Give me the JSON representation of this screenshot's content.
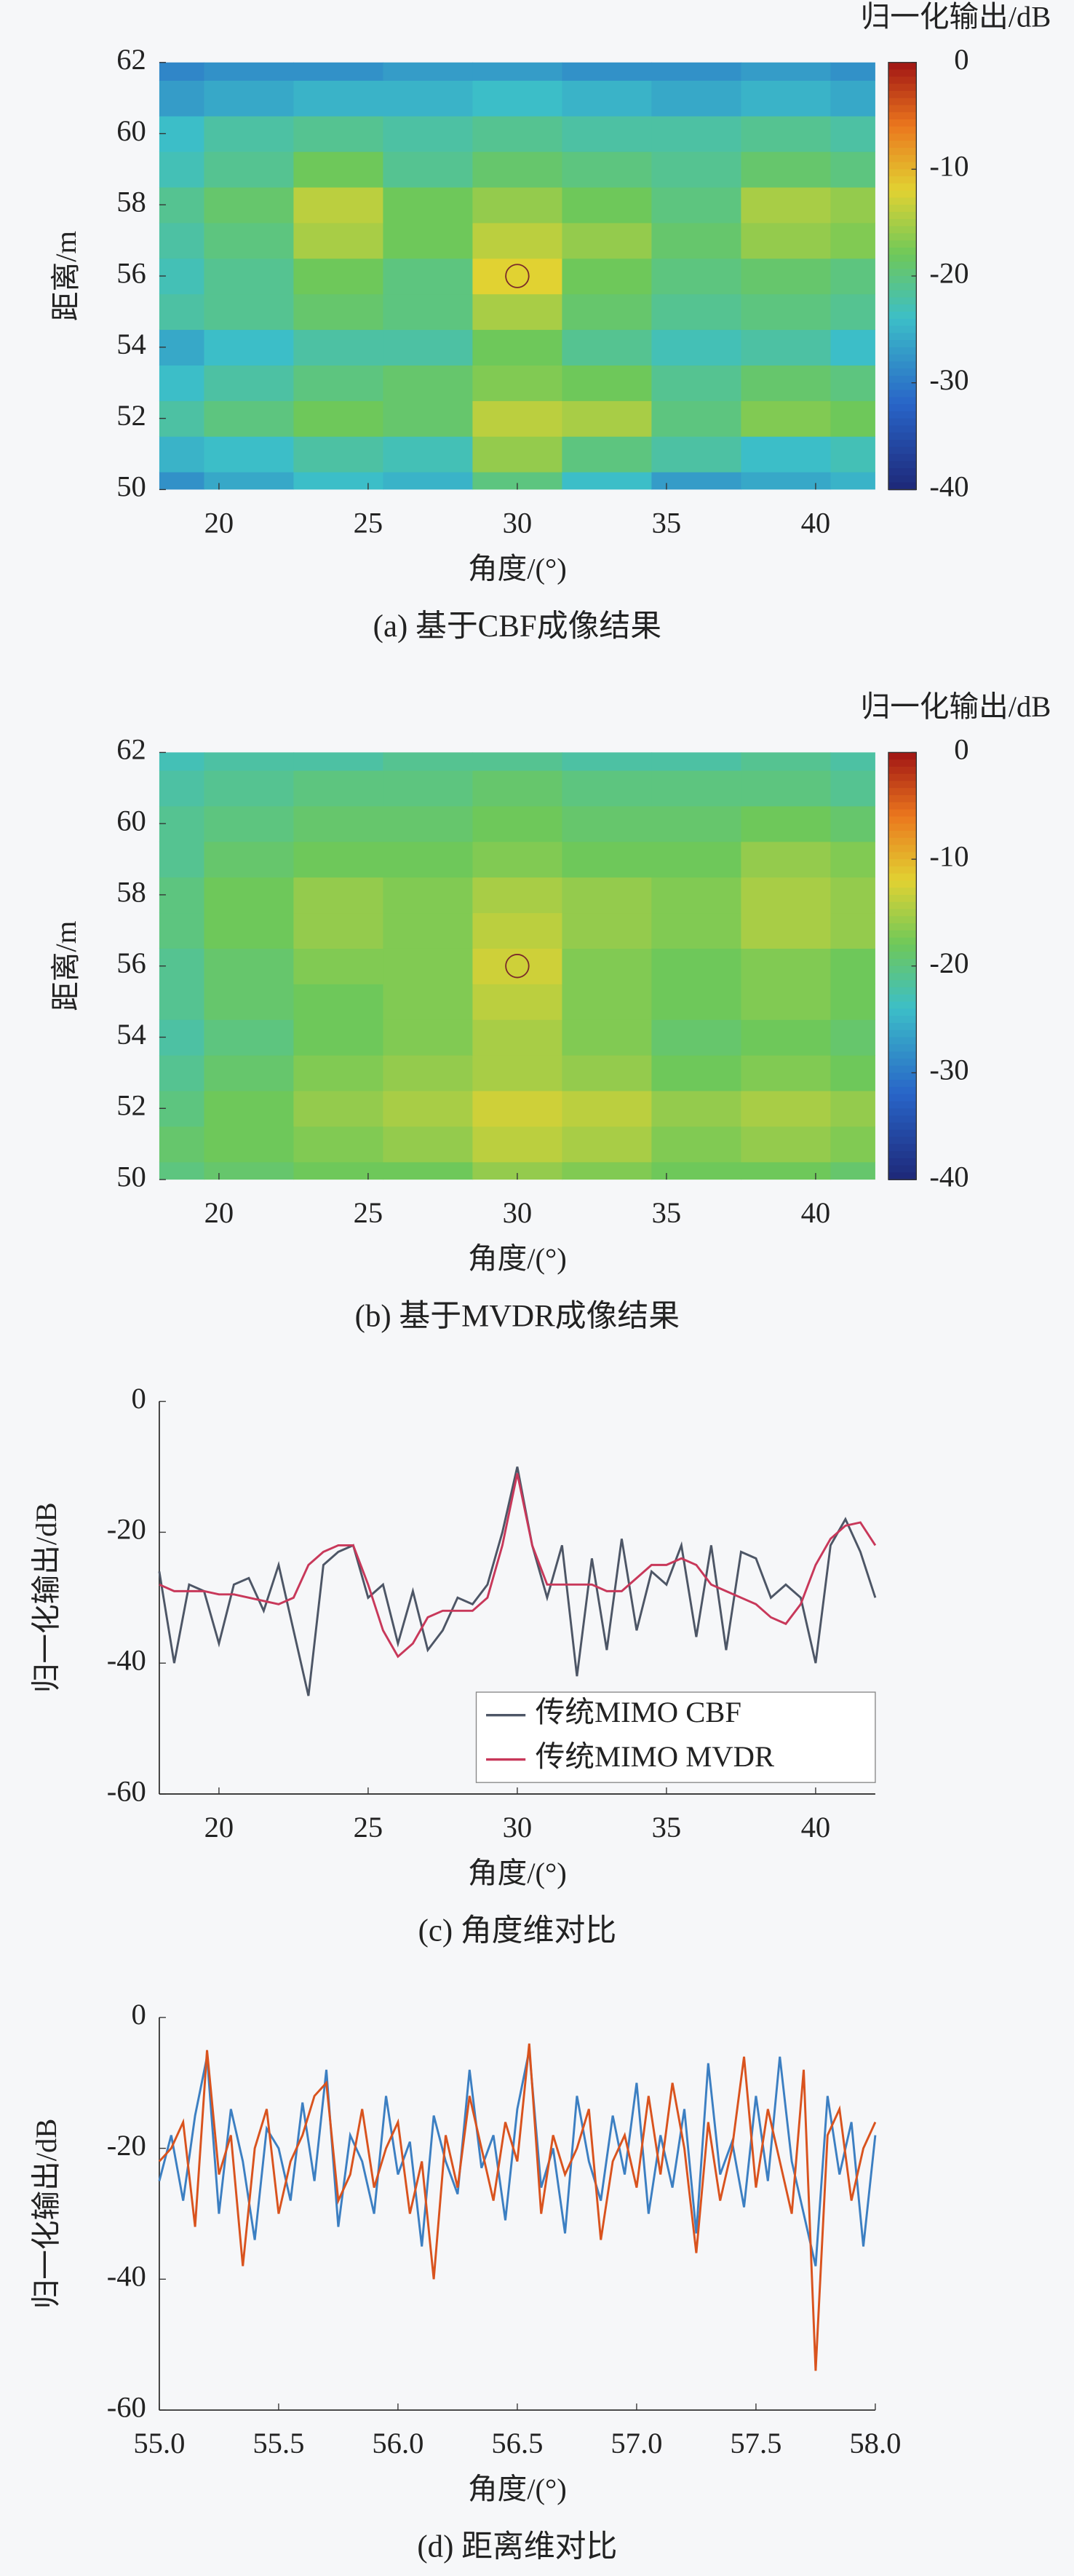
{
  "chart_data": [
    {
      "type": "heatmap",
      "colorbar_label": "归一化输出/dB",
      "xlabel": "角度/(°)",
      "ylabel": "距离/m",
      "caption": "(a) 基于CBF成像结果",
      "x": [
        18,
        21,
        24,
        27,
        30,
        33,
        36,
        39,
        42
      ],
      "y": [
        50,
        51,
        52,
        53,
        54,
        55,
        56,
        57,
        58,
        59,
        60,
        61,
        62
      ],
      "values": [
        [
          -28,
          -26,
          -24,
          -25,
          -20,
          -24,
          -27,
          -26,
          -25
        ],
        [
          -25,
          -24,
          -22,
          -23,
          -16,
          -20,
          -22,
          -24,
          -23
        ],
        [
          -22,
          -20,
          -18,
          -19,
          -14,
          -15,
          -20,
          -17,
          -18
        ],
        [
          -24,
          -22,
          -20,
          -19,
          -17,
          -18,
          -21,
          -19,
          -20
        ],
        [
          -26,
          -24,
          -22,
          -22,
          -18,
          -21,
          -23,
          -22,
          -24
        ],
        [
          -22,
          -21,
          -19,
          -20,
          -15,
          -19,
          -21,
          -20,
          -21
        ],
        [
          -23,
          -21,
          -18,
          -20,
          -12,
          -18,
          -20,
          -19,
          -20
        ],
        [
          -22,
          -20,
          -15,
          -18,
          -14,
          -16,
          -19,
          -16,
          -17
        ],
        [
          -21,
          -19,
          -14,
          -18,
          -16,
          -18,
          -20,
          -15,
          -16
        ],
        [
          -23,
          -21,
          -18,
          -21,
          -19,
          -20,
          -21,
          -19,
          -20
        ],
        [
          -24,
          -22,
          -21,
          -22,
          -21,
          -22,
          -22,
          -21,
          -22
        ],
        [
          -27,
          -26,
          -25,
          -25,
          -24,
          -25,
          -26,
          -25,
          -26
        ],
        [
          -29,
          -28,
          -28,
          -27,
          -27,
          -28,
          -28,
          -27,
          -28
        ]
      ],
      "xlim": [
        18,
        42
      ],
      "ylim": [
        50,
        62
      ],
      "xticks": [
        20,
        25,
        30,
        35,
        40
      ],
      "yticks": [
        50,
        52,
        54,
        56,
        58,
        60,
        62
      ],
      "clim": [
        -40,
        0
      ],
      "cticks": [
        0,
        -10,
        -20,
        -30,
        -40
      ],
      "circle_marker": {
        "x": 30,
        "y": 56
      }
    },
    {
      "type": "heatmap",
      "colorbar_label": "归一化输出/dB",
      "xlabel": "角度/(°)",
      "ylabel": "距离/m",
      "caption": "(b) 基于MVDR成像结果",
      "x": [
        18,
        21,
        24,
        27,
        30,
        33,
        36,
        39,
        42
      ],
      "y": [
        50,
        51,
        52,
        53,
        54,
        55,
        56,
        57,
        58,
        59,
        60,
        61,
        62
      ],
      "values": [
        [
          -20,
          -19,
          -18,
          -18,
          -16,
          -17,
          -18,
          -18,
          -19
        ],
        [
          -19,
          -18,
          -17,
          -16,
          -14,
          -15,
          -17,
          -16,
          -17
        ],
        [
          -20,
          -18,
          -16,
          -15,
          -13,
          -14,
          -16,
          -15,
          -16
        ],
        [
          -21,
          -19,
          -17,
          -16,
          -15,
          -16,
          -18,
          -17,
          -18
        ],
        [
          -22,
          -20,
          -18,
          -17,
          -15,
          -17,
          -19,
          -18,
          -19
        ],
        [
          -21,
          -19,
          -18,
          -17,
          -14,
          -17,
          -18,
          -17,
          -18
        ],
        [
          -21,
          -19,
          -17,
          -17,
          -13,
          -17,
          -18,
          -17,
          -18
        ],
        [
          -20,
          -18,
          -16,
          -17,
          -14,
          -16,
          -17,
          -15,
          -16
        ],
        [
          -20,
          -18,
          -16,
          -17,
          -15,
          -16,
          -17,
          -15,
          -16
        ],
        [
          -21,
          -19,
          -18,
          -18,
          -17,
          -18,
          -18,
          -16,
          -17
        ],
        [
          -21,
          -20,
          -19,
          -19,
          -18,
          -19,
          -19,
          -18,
          -19
        ],
        [
          -22,
          -21,
          -20,
          -20,
          -19,
          -20,
          -20,
          -20,
          -21
        ],
        [
          -23,
          -22,
          -22,
          -21,
          -21,
          -22,
          -22,
          -21,
          -22
        ]
      ],
      "xlim": [
        18,
        42
      ],
      "ylim": [
        50,
        62
      ],
      "xticks": [
        20,
        25,
        30,
        35,
        40
      ],
      "yticks": [
        50,
        52,
        54,
        56,
        58,
        60,
        62
      ],
      "clim": [
        -40,
        0
      ],
      "cticks": [
        0,
        -10,
        -20,
        -30,
        -40
      ],
      "circle_marker": {
        "x": 30,
        "y": 56
      }
    },
    {
      "type": "line",
      "xlabel": "角度/(°)",
      "ylabel": "归一化输出/dB",
      "caption": "(c) 角度维对比",
      "x": [
        18,
        18.5,
        19,
        19.5,
        20,
        20.5,
        21,
        21.5,
        22,
        22.5,
        23,
        23.5,
        24,
        24.5,
        25,
        25.5,
        26,
        26.5,
        27,
        27.5,
        28,
        28.5,
        29,
        29.5,
        30,
        30.5,
        31,
        31.5,
        32,
        32.5,
        33,
        33.5,
        34,
        34.5,
        35,
        35.5,
        36,
        36.5,
        37,
        37.5,
        38,
        38.5,
        39,
        39.5,
        40,
        40.5,
        41,
        41.5,
        42
      ],
      "series": [
        {
          "name": "传统MIMO CBF",
          "color": "#4d5666",
          "values": [
            -26,
            -40,
            -28,
            -29,
            -37,
            -28,
            -27,
            -32,
            -25,
            -35,
            -45,
            -25,
            -23,
            -22,
            -30,
            -28,
            -37,
            -29,
            -38,
            -35,
            -30,
            -31,
            -28,
            -20,
            -10,
            -22,
            -30,
            -22,
            -42,
            -24,
            -38,
            -21,
            -35,
            -26,
            -28,
            -22,
            -36,
            -22,
            -38,
            -23,
            -24,
            -30,
            -28,
            -30,
            -40,
            -22,
            -18,
            -23,
            -30
          ]
        },
        {
          "name": "传统MIMO MVDR",
          "color": "#c8385a",
          "values": [
            -28,
            -29,
            -29,
            -29,
            -29.5,
            -29.5,
            -30,
            -30.5,
            -31,
            -30,
            -25,
            -23,
            -22,
            -22,
            -28,
            -35,
            -39,
            -37,
            -33,
            -32,
            -32,
            -32,
            -30,
            -22,
            -11,
            -22,
            -28,
            -28,
            -28,
            -28,
            -29,
            -29,
            -27,
            -25,
            -25,
            -24,
            -25,
            -28,
            -29,
            -30,
            -31,
            -33,
            -34,
            -31,
            -25,
            -21,
            -19,
            -18.5,
            -22
          ]
        }
      ],
      "xlim": [
        18,
        42
      ],
      "ylim": [
        -60,
        0
      ],
      "xticks": [
        20,
        25,
        30,
        35,
        40
      ],
      "yticks": [
        0,
        -20,
        -40,
        -60
      ],
      "legend": "lower right"
    },
    {
      "type": "line",
      "xlabel": "角度/(°)",
      "ylabel": "归一化输出/dB",
      "caption": "(d) 距离维对比",
      "x": [
        55,
        55.05,
        55.1,
        55.15,
        55.2,
        55.25,
        55.3,
        55.35,
        55.4,
        55.45,
        55.5,
        55.55,
        55.6,
        55.65,
        55.7,
        55.75,
        55.8,
        55.85,
        55.9,
        55.95,
        56,
        56.05,
        56.1,
        56.15,
        56.2,
        56.25,
        56.3,
        56.35,
        56.4,
        56.45,
        56.5,
        56.55,
        56.6,
        56.65,
        56.7,
        56.75,
        56.8,
        56.85,
        56.9,
        56.95,
        57,
        57.05,
        57.1,
        57.15,
        57.2,
        57.25,
        57.3,
        57.35,
        57.4,
        57.45,
        57.5,
        57.55,
        57.6,
        57.65,
        57.7,
        57.75,
        57.8,
        57.85,
        57.9,
        57.95,
        58
      ],
      "series": [
        {
          "color": "#3c7fc2",
          "values": [
            -25,
            -18,
            -28,
            -15,
            -6,
            -30,
            -14,
            -22,
            -34,
            -17,
            -20,
            -28,
            -13,
            -25,
            -8,
            -32,
            -18,
            -22,
            -30,
            -12,
            -24,
            -19,
            -35,
            -15,
            -22,
            -27,
            -8,
            -23,
            -18,
            -31,
            -14,
            -5,
            -26,
            -20,
            -33,
            -12,
            -22,
            -28,
            -15,
            -24,
            -10,
            -30,
            -18,
            -26,
            -14,
            -33,
            -7,
            -24,
            -19,
            -29,
            -12,
            -25,
            -6,
            -22,
            -30,
            -38,
            -12,
            -24,
            -16,
            -35,
            -18
          ]
        },
        {
          "color": "#d9531e",
          "values": [
            -22,
            -20,
            -16,
            -32,
            -5,
            -24,
            -18,
            -38,
            -20,
            -14,
            -30,
            -22,
            -18,
            -12,
            -10,
            -28,
            -24,
            -14,
            -26,
            -20,
            -16,
            -30,
            -22,
            -40,
            -18,
            -26,
            -12,
            -20,
            -28,
            -16,
            -22,
            -4,
            -30,
            -18,
            -24,
            -20,
            -14,
            -34,
            -22,
            -18,
            -26,
            -12,
            -24,
            -10,
            -20,
            -36,
            -16,
            -28,
            -20,
            -6,
            -26,
            -14,
            -22,
            -30,
            -8,
            -54,
            -18,
            -14,
            -28,
            -20,
            -16
          ]
        }
      ],
      "xlim": [
        55,
        58
      ],
      "ylim": [
        -60,
        0
      ],
      "xticks": [
        {
          "value": 55,
          "label": "55.0"
        },
        {
          "value": 55.5,
          "label": "55.5"
        },
        {
          "value": 56,
          "label": "56.0"
        },
        {
          "value": 56.5,
          "label": "56.5"
        },
        {
          "value": 57,
          "label": "57.0"
        },
        {
          "value": 57.5,
          "label": "57.5"
        },
        {
          "value": 58,
          "label": "58.0"
        }
      ],
      "yticks": [
        0,
        -20,
        -40,
        -60
      ]
    }
  ]
}
